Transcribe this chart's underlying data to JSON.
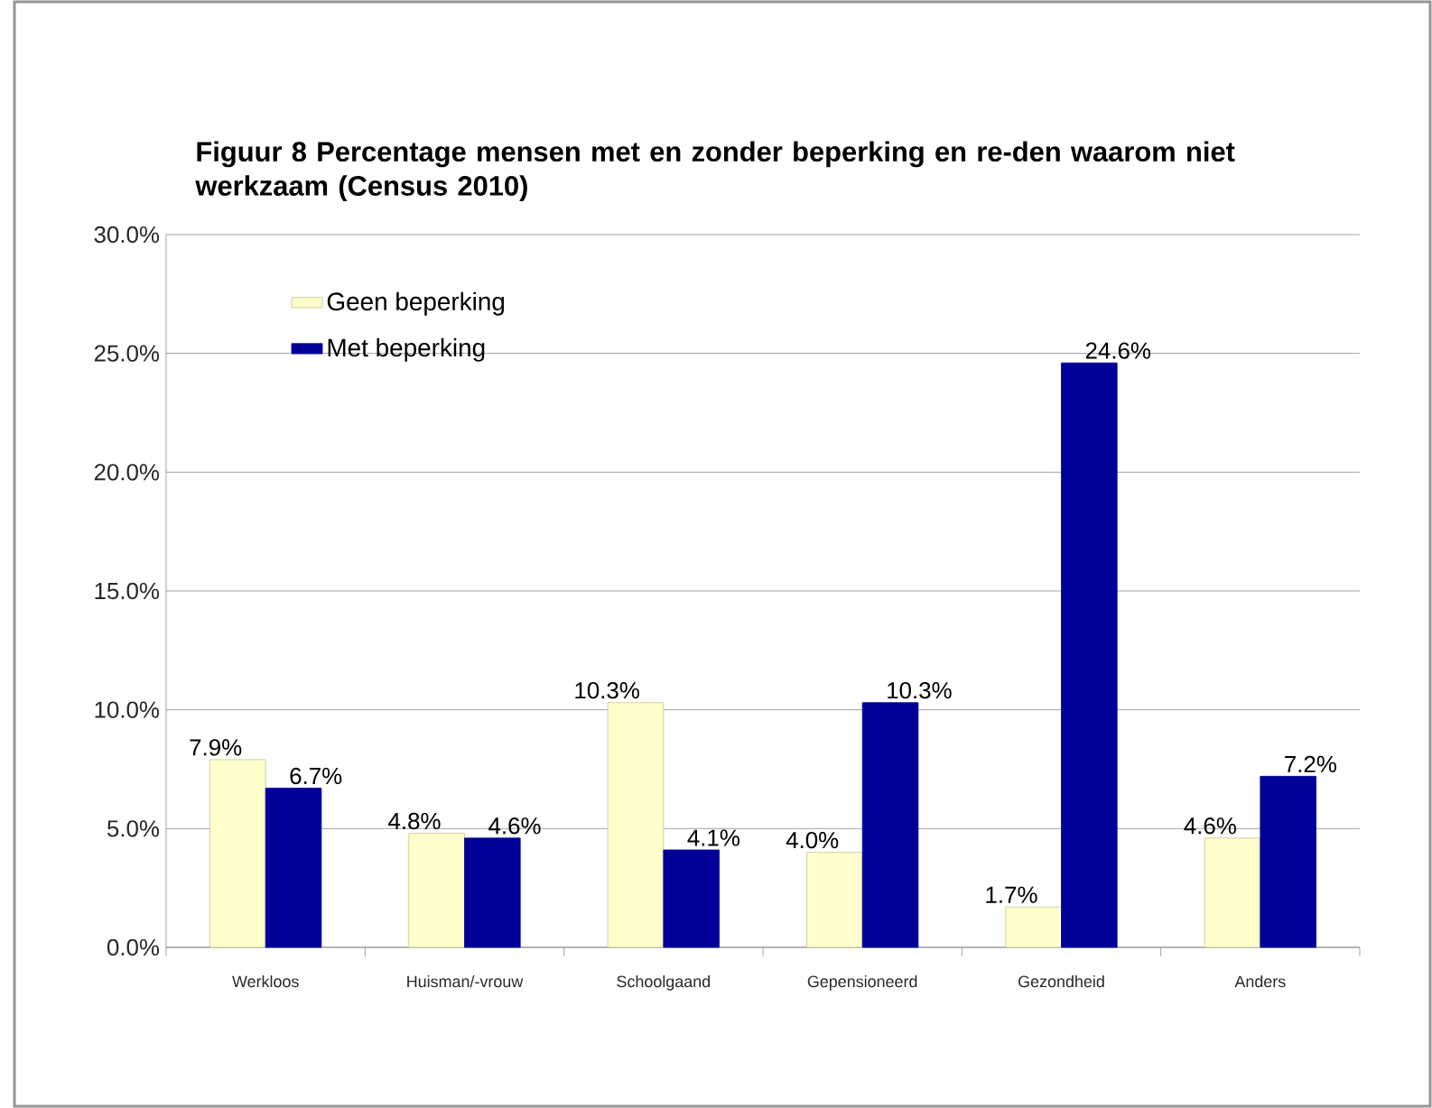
{
  "chart_data": {
    "type": "bar",
    "title": "Figuur 8 Percentage mensen met en zonder beperking en re-den waarom niet werkzaam (Census 2010)",
    "categories": [
      "Werkloos",
      "Huisman/-vrouw",
      "Schoolgaand",
      "Gepensioneerd",
      "Gezondheid",
      "Anders"
    ],
    "series": [
      {
        "name": "Geen beperking",
        "color": "#ffffcc",
        "values": [
          7.9,
          4.8,
          10.3,
          4.0,
          1.7,
          4.6
        ],
        "value_labels": [
          "7.9%",
          "4.8%",
          "10.3%",
          "4.0%",
          "1.7%",
          "4.6%"
        ]
      },
      {
        "name": "Met beperking",
        "color": "#000099",
        "values": [
          6.7,
          4.6,
          4.1,
          10.3,
          24.6,
          7.2
        ],
        "value_labels": [
          "6.7%",
          "4.6%",
          "4.1%",
          "10.3%",
          "24.6%",
          "7.2%"
        ]
      }
    ],
    "ylim": [
      0,
      30
    ],
    "yticks": [
      {
        "value": 0,
        "label": "0.0%"
      },
      {
        "value": 5,
        "label": "5.0%"
      },
      {
        "value": 10,
        "label": "10.0%"
      },
      {
        "value": 15,
        "label": "15.0%"
      },
      {
        "value": 20,
        "label": "20.0%"
      },
      {
        "value": 25,
        "label": "25.0%"
      },
      {
        "value": 30,
        "label": "30.0%"
      }
    ],
    "grid": "y",
    "legend": "top left"
  }
}
